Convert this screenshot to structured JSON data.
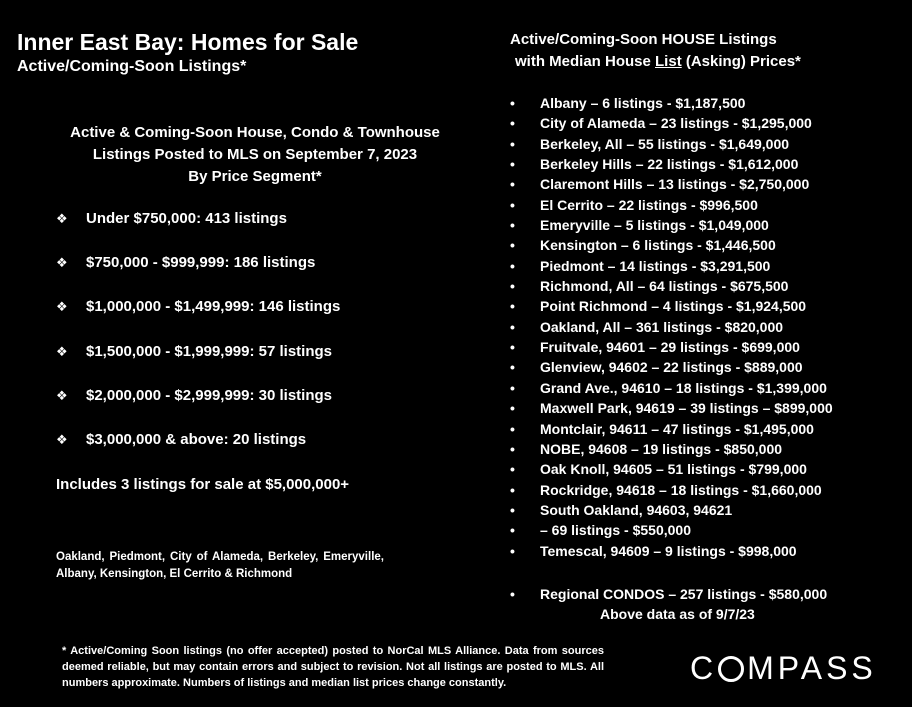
{
  "left": {
    "title": "Inner East Bay: Homes for Sale",
    "subtitle": "Active/Coming-Soon Listings*",
    "segment_heading": [
      "Active & Coming-Soon House, Condo & Townhouse",
      "Listings Posted to MLS on September 7, 2023",
      "By Price Segment*"
    ],
    "segments": [
      "Under $750,000:  413 listings",
      "$750,000 - $999,999:  186 listings",
      "$1,000,000 - $1,499,999:  146 listings",
      "$1,500,000 - $1,999,999:  57 listings",
      "$2,000,000 - $2,999,999:  30 listings",
      "$3,000,000 & above:  20 listings"
    ],
    "segment_bullet": "❖",
    "includes": "Includes 3 listings for sale at $5,000,000+",
    "areas": "Oakland, Piedmont, City of Alameda, Berkeley, Emeryville, Albany, Kensington, El Cerrito & Richmond"
  },
  "right": {
    "heading_line1": "Active/Coming-Soon HOUSE Listings",
    "heading_line2_pre": "with Median House ",
    "heading_line2_underlined": "List",
    "heading_line2_post": " (Asking) Prices*",
    "bullet": "•",
    "listings": [
      "Albany – 6 listings - $1,187,500",
      "City of Alameda – 23 listings - $1,295,000",
      "Berkeley, All – 55 listings - $1,649,000",
      "Berkeley Hills – 22 listings - $1,612,000",
      "Claremont Hills – 13 listings - $2,750,000",
      "El Cerrito – 22 listings - $996,500",
      "Emeryville – 5 listings - $1,049,000",
      "Kensington – 6 listings - $1,446,500",
      "Piedmont – 14 listings - $3,291,500",
      "Richmond, All – 64 listings - $675,500",
      "Point Richmond – 4 listings - $1,924,500",
      "Oakland, All – 361 listings - $820,000",
      "Fruitvale, 94601 – 29 listings - $699,000",
      "Glenview, 94602 – 22 listings - $889,000",
      "Grand Ave., 94610 – 18 listings - $1,399,000",
      "Maxwell Park, 94619 – 39 listings – $899,000",
      "Montclair, 94611 – 47 listings - $1,495,000",
      "NOBE, 94608 – 19 listings - $850,000",
      "Oak Knoll, 94605 – 51 listings - $799,000",
      "Rockridge, 94618 – 18 listings - $1,660,000",
      "South Oakland, 94603, 94621",
      "– 69 listings - $550,000",
      "Temescal, 94609 – 9 listings - $998,000"
    ],
    "condos": "Regional CONDOS – 257 listings - $580,000",
    "as_of": "Above data as of 9/7/23"
  },
  "footnote": "* Active/Coming Soon listings (no offer accepted) posted to NorCal MLS Alliance.  Data from sources deemed reliable, but may contain errors and subject to revision.  Not all listings are posted to MLS. All numbers approximate. Numbers of listings and median list prices change constantly.",
  "logo": {
    "text_pre": "C",
    "text_post": "MPASS"
  }
}
